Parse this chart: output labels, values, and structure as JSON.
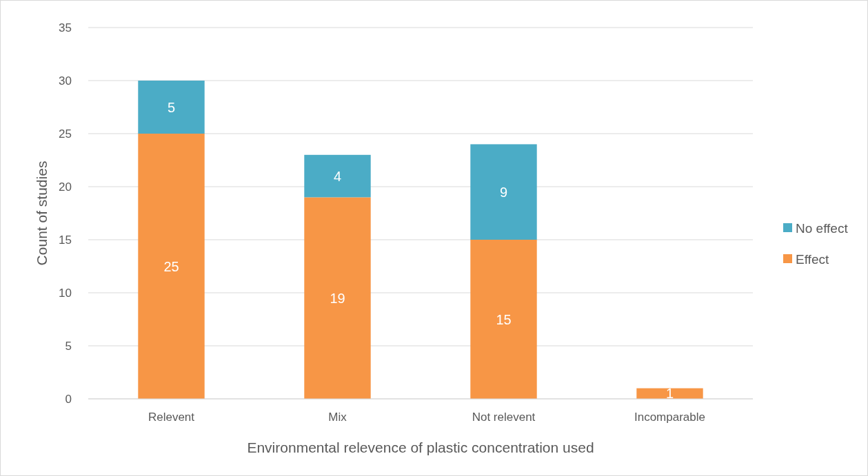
{
  "chart_data": {
    "type": "bar",
    "stacked": true,
    "xlabel": "Environmental relevence of plastic concentration used",
    "ylabel": "Count of studies",
    "categories": [
      "Relevent",
      "Mix",
      "Not relevent",
      "Incomparable"
    ],
    "series": [
      {
        "name": "Effect",
        "color": "#f79646",
        "values": [
          25,
          19,
          15,
          1
        ],
        "value_labels": [
          "25",
          "19",
          "15",
          "1"
        ]
      },
      {
        "name": "No effect",
        "color": "#4bacc6",
        "values": [
          5,
          4,
          9,
          0
        ],
        "value_labels": [
          "5",
          "4",
          "9",
          null
        ]
      }
    ],
    "ylim": [
      0,
      35
    ],
    "yticks": [
      0,
      5,
      10,
      15,
      20,
      25,
      30,
      35
    ],
    "grid": "y",
    "legend": "right"
  }
}
